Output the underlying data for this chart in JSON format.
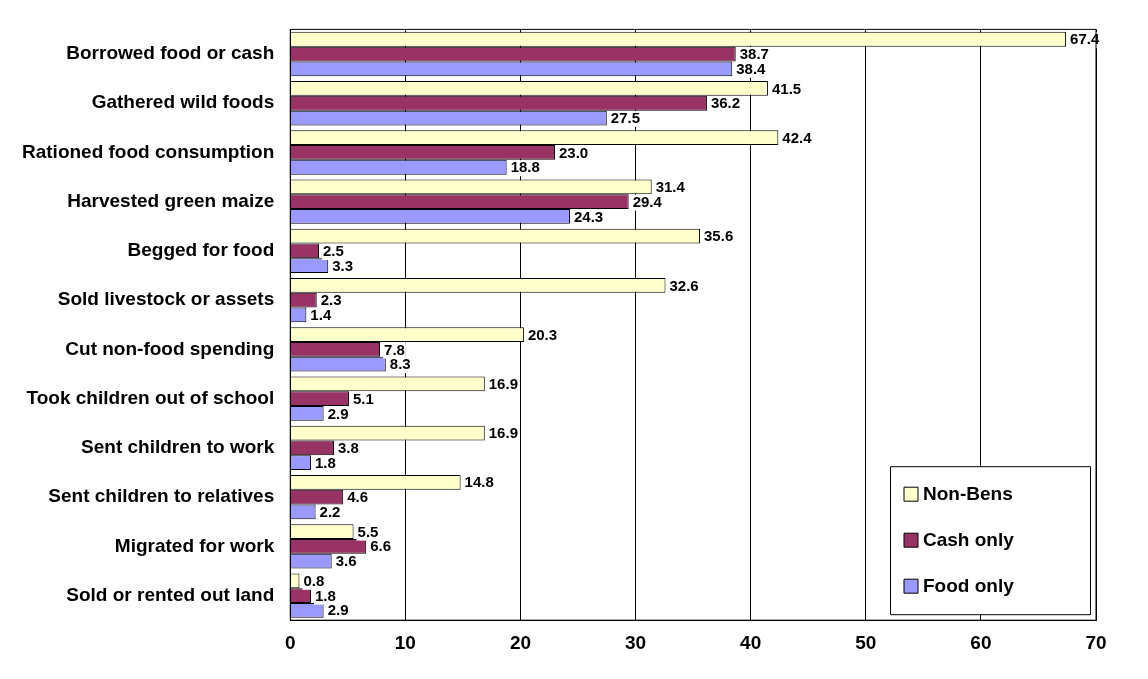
{
  "chart_data": {
    "type": "bar",
    "orientation": "horizontal",
    "categories": [
      "Borrowed food or cash",
      "Gathered wild foods",
      "Rationed food consumption",
      "Harvested green maize",
      "Begged for food",
      "Sold livestock or assets",
      "Cut non-food spending",
      "Took children out of school",
      "Sent children to work",
      "Sent children to relatives",
      "Migrated for work",
      "Sold or rented out land"
    ],
    "series": [
      {
        "name": "Non-Bens",
        "color": "#ffffcc",
        "values": [
          67.4,
          41.5,
          42.4,
          31.4,
          35.6,
          32.6,
          20.3,
          16.9,
          16.9,
          14.8,
          5.5,
          0.8
        ]
      },
      {
        "name": "Cash only",
        "color": "#993366",
        "values": [
          38.7,
          36.2,
          23.0,
          29.4,
          2.5,
          2.3,
          7.8,
          5.1,
          3.8,
          4.6,
          6.6,
          1.8
        ]
      },
      {
        "name": "Food only",
        "color": "#9999ff",
        "values": [
          38.4,
          27.5,
          18.8,
          24.3,
          3.3,
          1.4,
          8.3,
          2.9,
          1.8,
          2.2,
          3.6,
          2.9
        ]
      }
    ],
    "value_labels": [
      [
        "67.4",
        "41.5",
        "42.4",
        "31.4",
        "35.6",
        "32.6",
        "20.3",
        "16.9",
        "16.9",
        "14.8",
        "5.5",
        "0.8"
      ],
      [
        "38.7",
        "36.2",
        "23.0",
        "29.4",
        "2.5",
        "2.3",
        "7.8",
        "5.1",
        "3.8",
        "4.6",
        "6.6",
        "1.8"
      ],
      [
        "38.4",
        "27.5",
        "18.8",
        "24.3",
        "3.3",
        "1.4",
        "8.3",
        "2.9",
        "1.8",
        "2.2",
        "3.6",
        "2.9"
      ]
    ],
    "xlim": [
      0,
      70
    ],
    "xticks": [
      0,
      10,
      20,
      30,
      40,
      50,
      60,
      70
    ],
    "grid": "x",
    "legend": "bottom right"
  }
}
